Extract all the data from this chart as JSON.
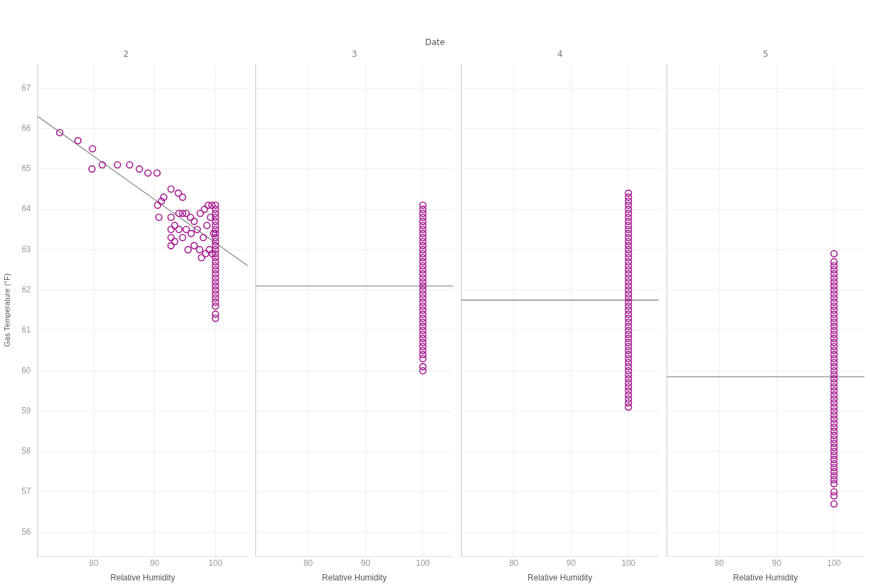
{
  "chart_data": [
    {
      "type": "scatter",
      "title": "2",
      "annotations": [
        "Date"
      ],
      "xlabel": "Relative Humidity",
      "ylabel": "Gas Temperature (°F)",
      "xlim": [
        70.8,
        105.3
      ],
      "xticks": [
        80,
        90,
        100
      ],
      "ylim": [
        55.4,
        67.6
      ],
      "yticks": [
        56,
        57,
        58,
        59,
        60,
        61,
        62,
        63,
        64,
        65,
        66,
        67
      ],
      "grid": true,
      "marker": "circle",
      "series": [
        {
          "color": "#a3168e",
          "x": [
            74.4,
            77.4,
            79.8,
            79.7,
            81.4,
            83.9,
            85.9,
            87.5,
            88.9,
            90.4,
            92.7,
            93.9,
            94.6,
            91.5,
            91.1,
            90.5,
            90.7,
            92.7,
            92.7,
            92.7,
            92.7,
            93.3,
            93.3,
            94,
            94,
            94.6,
            94.6,
            95.2,
            95.2,
            95.5,
            95.9,
            96,
            96.5,
            96.5,
            97,
            97.4,
            97.7,
            97.5,
            98,
            98.2,
            98.4,
            98.6,
            98.8,
            99,
            99.2,
            99.4,
            99.5,
            99.7,
            100,
            100,
            100,
            100,
            100,
            100,
            100,
            100,
            100,
            100,
            100,
            100,
            100,
            100,
            100,
            100,
            100,
            100,
            100,
            100,
            100,
            100,
            100,
            100,
            100,
            100,
            100,
            100
          ],
          "values": [
            65.9,
            65.7,
            65.5,
            65.0,
            65.1,
            65.1,
            65.1,
            65.0,
            64.9,
            64.9,
            64.5,
            64.4,
            64.3,
            64.3,
            64.2,
            64.1,
            63.8,
            63.8,
            63.5,
            63.3,
            63.1,
            63.6,
            63.2,
            63.9,
            63.5,
            63.9,
            63.3,
            63.9,
            63.5,
            63.0,
            63.8,
            63.4,
            63.7,
            63.1,
            63.5,
            63.0,
            62.8,
            63.9,
            63.3,
            64.0,
            62.9,
            63.6,
            64.1,
            63.0,
            63.8,
            64.1,
            62.9,
            63.4,
            64.1,
            64.0,
            63.9,
            63.8,
            63.7,
            63.6,
            63.5,
            63.4,
            63.3,
            63.2,
            63.1,
            63.0,
            62.9,
            62.8,
            62.7,
            62.6,
            62.5,
            62.4,
            62.3,
            62.2,
            62.1,
            62.0,
            61.9,
            61.8,
            61.7,
            61.6,
            61.4,
            61.3
          ]
        },
        {
          "type": "line",
          "marker": "none",
          "color": "#8c8c8c",
          "x": [
            70.8,
            105.3
          ],
          "values": [
            66.3,
            62.6
          ]
        }
      ]
    },
    {
      "type": "scatter",
      "title": "3",
      "xlabel": "Relative Humidity",
      "xlim": [
        70.8,
        105.3
      ],
      "xticks": [
        80,
        90,
        100
      ],
      "ylim": [
        55.4,
        67.6
      ],
      "yticks": [
        56,
        57,
        58,
        59,
        60,
        61,
        62,
        63,
        64,
        65,
        66,
        67
      ],
      "grid": true,
      "marker": "circle",
      "tick_labels": "x",
      "series": [
        {
          "color": "#a3168e",
          "x": [
            100,
            100,
            100,
            100,
            100,
            100,
            100,
            100,
            100,
            100,
            100,
            100,
            100,
            100,
            100,
            100,
            100,
            100,
            100,
            100,
            100,
            100,
            100,
            100,
            100,
            100,
            100,
            100,
            100,
            100,
            100,
            100,
            100,
            100,
            100,
            100,
            100,
            100,
            100,
            100,
            100
          ],
          "values": [
            64.1,
            64.0,
            63.9,
            63.8,
            63.7,
            63.6,
            63.5,
            63.4,
            63.3,
            63.2,
            63.1,
            63.0,
            62.9,
            62.8,
            62.7,
            62.6,
            62.5,
            62.4,
            62.3,
            62.2,
            62.1,
            62.0,
            61.9,
            61.8,
            61.7,
            61.6,
            61.5,
            61.4,
            61.3,
            61.2,
            61.1,
            61.0,
            60.9,
            60.8,
            60.7,
            60.6,
            60.5,
            60.4,
            60.3,
            60.1,
            60.0
          ]
        },
        {
          "type": "line",
          "marker": "none",
          "color": "#8c8c8c",
          "x": [
            70.8,
            105.3
          ],
          "values": [
            62.1,
            62.1
          ]
        }
      ]
    },
    {
      "type": "scatter",
      "title": "4",
      "xlabel": "Relative Humidity",
      "xlim": [
        70.8,
        105.3
      ],
      "xticks": [
        80,
        90,
        100
      ],
      "ylim": [
        55.4,
        67.6
      ],
      "yticks": [
        56,
        57,
        58,
        59,
        60,
        61,
        62,
        63,
        64,
        65,
        66,
        67
      ],
      "grid": true,
      "marker": "circle",
      "tick_labels": "x",
      "series": [
        {
          "color": "#a3168e",
          "x": [
            100,
            100,
            100,
            100,
            100,
            100,
            100,
            100,
            100,
            100,
            100,
            100,
            100,
            100,
            100,
            100,
            100,
            100,
            100,
            100,
            100,
            100,
            100,
            100,
            100,
            100,
            100,
            100,
            100,
            100,
            100,
            100,
            100,
            100,
            100,
            100,
            100,
            100,
            100,
            100,
            100,
            100,
            100,
            100,
            100,
            100,
            100,
            100,
            100,
            100,
            100,
            100,
            100,
            100
          ],
          "values": [
            64.4,
            64.3,
            64.2,
            64.1,
            64.0,
            63.9,
            63.8,
            63.7,
            63.6,
            63.5,
            63.4,
            63.3,
            63.2,
            63.1,
            63.0,
            62.9,
            62.8,
            62.7,
            62.6,
            62.5,
            62.4,
            62.3,
            62.2,
            62.1,
            62.0,
            61.9,
            61.8,
            61.7,
            61.6,
            61.5,
            61.4,
            61.3,
            61.2,
            61.1,
            61.0,
            60.9,
            60.8,
            60.7,
            60.6,
            60.5,
            60.4,
            60.3,
            60.2,
            60.1,
            60.0,
            59.9,
            59.8,
            59.7,
            59.6,
            59.5,
            59.4,
            59.3,
            59.2,
            59.1
          ]
        },
        {
          "type": "line",
          "marker": "none",
          "color": "#8c8c8c",
          "x": [
            70.8,
            105.3
          ],
          "values": [
            61.75,
            61.75
          ]
        }
      ]
    },
    {
      "type": "scatter",
      "title": "5",
      "xlabel": "Relative Humidity",
      "xlim": [
        70.8,
        105.3
      ],
      "xticks": [
        80,
        90,
        100
      ],
      "ylim": [
        55.4,
        67.6
      ],
      "yticks": [
        56,
        57,
        58,
        59,
        60,
        61,
        62,
        63,
        64,
        65,
        66,
        67
      ],
      "grid": true,
      "marker": "circle",
      "tick_labels": "x",
      "series": [
        {
          "color": "#a3168e",
          "x": [
            100,
            100,
            100,
            100,
            100,
            100,
            100,
            100,
            100,
            100,
            100,
            100,
            100,
            100,
            100,
            100,
            100,
            100,
            100,
            100,
            100,
            100,
            100,
            100,
            100,
            100,
            100,
            100,
            100,
            100,
            100,
            100,
            100,
            100,
            100,
            100,
            100,
            100,
            100,
            100,
            100,
            100,
            100,
            100,
            100,
            100,
            100,
            100,
            100,
            100,
            100,
            100,
            100,
            100,
            100,
            100,
            100,
            100,
            100,
            100
          ],
          "values": [
            62.9,
            62.7,
            62.6,
            62.5,
            62.4,
            62.3,
            62.2,
            62.1,
            62.0,
            61.9,
            61.8,
            61.7,
            61.6,
            61.5,
            61.4,
            61.3,
            61.2,
            61.1,
            61.0,
            60.9,
            60.8,
            60.7,
            60.6,
            60.5,
            60.4,
            60.3,
            60.2,
            60.1,
            60.0,
            59.9,
            59.8,
            59.7,
            59.6,
            59.5,
            59.4,
            59.3,
            59.2,
            59.1,
            59.0,
            58.9,
            58.8,
            58.7,
            58.6,
            58.5,
            58.4,
            58.3,
            58.2,
            58.1,
            58.0,
            57.9,
            57.8,
            57.7,
            57.6,
            57.5,
            57.4,
            57.3,
            57.2,
            57.0,
            56.9,
            56.7
          ]
        },
        {
          "type": "line",
          "marker": "none",
          "color": "#8c8c8c",
          "x": [
            70.8,
            105.3
          ],
          "values": [
            59.85,
            59.85
          ]
        }
      ]
    }
  ]
}
